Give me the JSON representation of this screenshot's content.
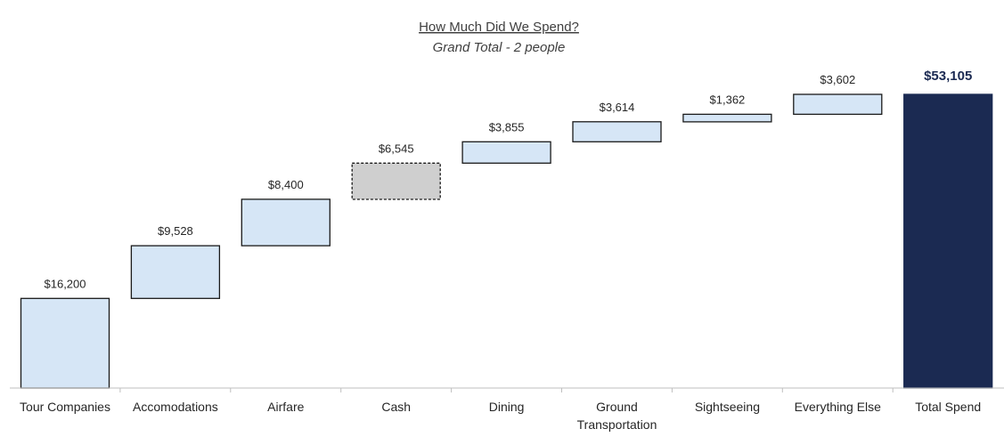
{
  "chart_data": {
    "type": "bar",
    "subtype": "waterfall",
    "title": "How Much Did We Spend?",
    "subtitle": "Grand Total - 2 people",
    "xlabel": "",
    "ylabel": "",
    "ylim": [
      0,
      53105
    ],
    "grid": false,
    "legend": "none",
    "categories": [
      "Tour Companies",
      "Accomodations",
      "Airfare",
      "Cash",
      "Dining",
      "Ground Transportation",
      "Sightseeing",
      "Everything Else",
      "Total Spend"
    ],
    "category_lines": [
      [
        "Tour Companies"
      ],
      [
        "Accomodations"
      ],
      [
        "Airfare"
      ],
      [
        "Cash"
      ],
      [
        "Dining"
      ],
      [
        "Ground",
        "Transportation"
      ],
      [
        "Sightseeing"
      ],
      [
        "Everything Else"
      ],
      [
        "Total Spend"
      ]
    ],
    "values": [
      16200,
      9528,
      8400,
      6545,
      3855,
      3614,
      1362,
      3602,
      53105
    ],
    "value_labels": [
      "$16,200",
      "$9,528",
      "$8,400",
      "$6,545",
      "$3,855",
      "$3,614",
      "$1,362",
      "$3,602",
      "$53,105"
    ],
    "kinds": [
      "increment",
      "increment",
      "increment",
      "estimate",
      "increment",
      "increment",
      "increment",
      "increment",
      "total"
    ],
    "colors": {
      "increment": "#d6e6f6",
      "estimate": "#cfcfcf",
      "total": "#1b2a52",
      "border": "#1a1a1a",
      "axis": "#bfbfbf"
    }
  }
}
